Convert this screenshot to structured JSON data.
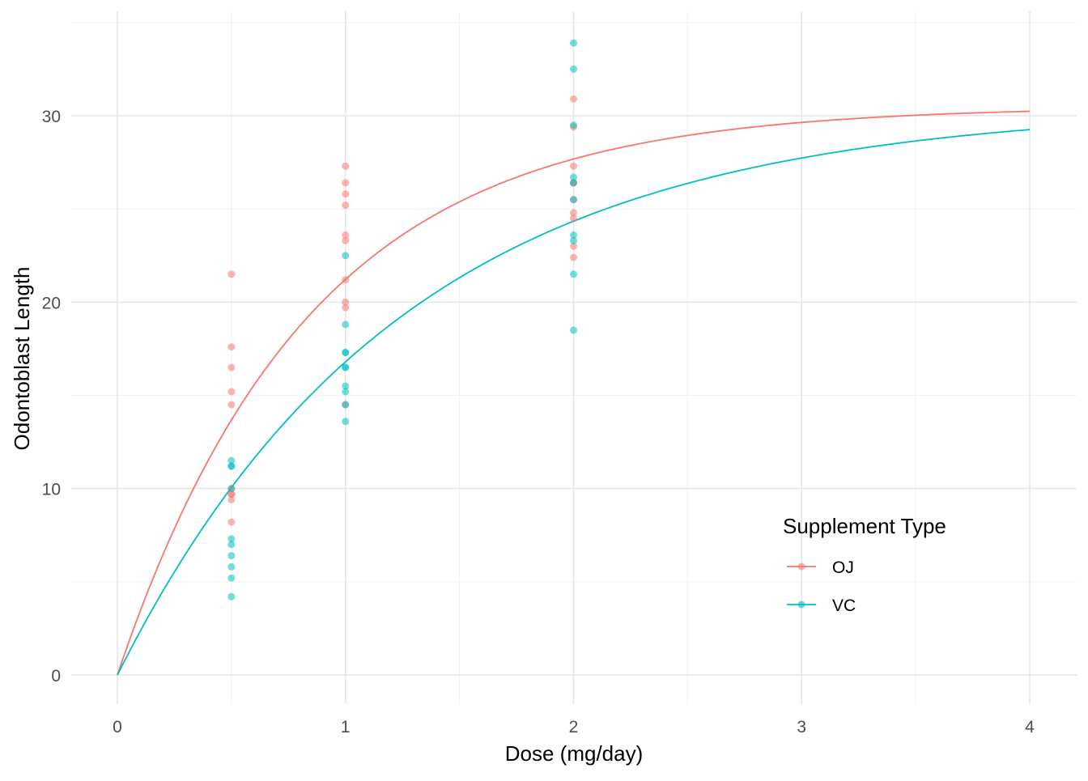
{
  "chart_data": {
    "type": "scatter",
    "title": "",
    "xlabel": "Dose (mg/day)",
    "ylabel": "Odontoblast Length",
    "xlim": [
      -0.2,
      4.2
    ],
    "ylim": [
      -1.5,
      35.3
    ],
    "x_ticks": [
      0,
      1,
      2,
      3,
      4
    ],
    "y_ticks": [
      0,
      10,
      20,
      30
    ],
    "grid": true,
    "legend": {
      "title": "Supplement Type",
      "placement": "bottom-right-inside",
      "entries": [
        "OJ",
        "VC"
      ]
    },
    "series": [
      {
        "name": "OJ",
        "color": "#F8766D",
        "points": [
          [
            0.5,
            15.2
          ],
          [
            0.5,
            21.5
          ],
          [
            0.5,
            17.6
          ],
          [
            0.5,
            9.7
          ],
          [
            0.5,
            14.5
          ],
          [
            0.5,
            10.0
          ],
          [
            0.5,
            8.2
          ],
          [
            0.5,
            9.4
          ],
          [
            0.5,
            16.5
          ],
          [
            0.5,
            9.7
          ],
          [
            1,
            19.7
          ],
          [
            1,
            23.3
          ],
          [
            1,
            23.6
          ],
          [
            1,
            26.4
          ],
          [
            1,
            20.0
          ],
          [
            1,
            25.2
          ],
          [
            1,
            25.8
          ],
          [
            1,
            21.2
          ],
          [
            1,
            14.5
          ],
          [
            1,
            27.3
          ],
          [
            2,
            25.5
          ],
          [
            2,
            26.4
          ],
          [
            2,
            22.4
          ],
          [
            2,
            24.5
          ],
          [
            2,
            24.8
          ],
          [
            2,
            30.9
          ],
          [
            2,
            26.4
          ],
          [
            2,
            27.3
          ],
          [
            2,
            29.4
          ],
          [
            2,
            23.0
          ]
        ],
        "fit": {
          "model": "a*(1-exp(-b*x))",
          "a": 30.5,
          "b": 1.19,
          "x_range": [
            0,
            4
          ]
        }
      },
      {
        "name": "VC",
        "color": "#00BFC4",
        "points": [
          [
            0.5,
            4.2
          ],
          [
            0.5,
            11.5
          ],
          [
            0.5,
            7.3
          ],
          [
            0.5,
            5.8
          ],
          [
            0.5,
            6.4
          ],
          [
            0.5,
            10.0
          ],
          [
            0.5,
            11.2
          ],
          [
            0.5,
            11.2
          ],
          [
            0.5,
            5.2
          ],
          [
            0.5,
            7.0
          ],
          [
            1,
            16.5
          ],
          [
            1,
            16.5
          ],
          [
            1,
            15.2
          ],
          [
            1,
            17.3
          ],
          [
            1,
            22.5
          ],
          [
            1,
            17.3
          ],
          [
            1,
            13.6
          ],
          [
            1,
            14.5
          ],
          [
            1,
            18.8
          ],
          [
            1,
            15.5
          ],
          [
            2,
            23.6
          ],
          [
            2,
            18.5
          ],
          [
            2,
            33.9
          ],
          [
            2,
            25.5
          ],
          [
            2,
            26.4
          ],
          [
            2,
            32.5
          ],
          [
            2,
            26.7
          ],
          [
            2,
            21.5
          ],
          [
            2,
            23.3
          ],
          [
            2,
            29.5
          ]
        ],
        "fit": {
          "model": "a*(1-exp(-b*x))",
          "a": 30.5,
          "b": 0.8,
          "x_range": [
            0,
            4
          ]
        }
      }
    ]
  }
}
